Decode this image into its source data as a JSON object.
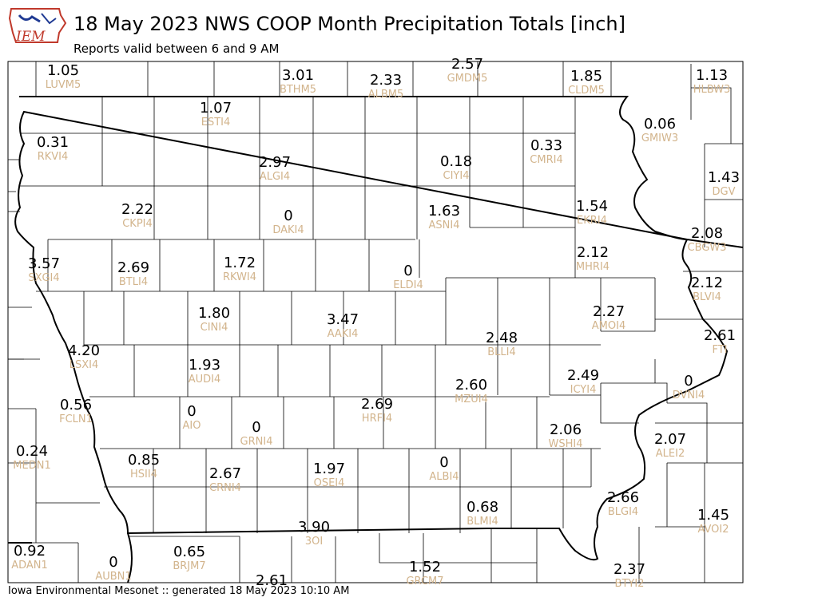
{
  "header": {
    "logo_text": "IEM",
    "title": "18 May 2023 NWS COOP Month Precipitation Totals [inch]",
    "subtitle": "Reports valid between 6 and 9 AM"
  },
  "footer": {
    "text": "Iowa Environmental Mesonet :: generated 18 May 2023 10:10 AM"
  },
  "colors": {
    "value_text": "#000000",
    "station_text": "#d2b48c",
    "boundary": "#000000",
    "logo_red": "#c0392b",
    "logo_blue": "#1f3a93"
  },
  "stations": [
    {
      "id": "LUVM5",
      "value": "1.05"
    },
    {
      "id": "BTHM5",
      "value": "3.01"
    },
    {
      "id": "ALBM5",
      "value": "2.33"
    },
    {
      "id": "GMDM5",
      "value": "2.57"
    },
    {
      "id": "CLDM5",
      "value": "1.85"
    },
    {
      "id": "HLBW3",
      "value": "1.13"
    },
    {
      "id": "ESTI4",
      "value": "1.07"
    },
    {
      "id": "GMIW3",
      "value": "0.06"
    },
    {
      "id": "RKVI4",
      "value": "0.31"
    },
    {
      "id": "CMRI4",
      "value": "0.33"
    },
    {
      "id": "ALGI4",
      "value": "2.97"
    },
    {
      "id": "CIYI4",
      "value": "0.18"
    },
    {
      "id": "DGV",
      "value": "1.43"
    },
    {
      "id": "CKPI4",
      "value": "2.22"
    },
    {
      "id": "DAKI4",
      "value": "0"
    },
    {
      "id": "ASNI4",
      "value": "1.63"
    },
    {
      "id": "EKRI4",
      "value": "1.54"
    },
    {
      "id": "CBGW3",
      "value": "2.08"
    },
    {
      "id": "SXGI4",
      "value": "3.57"
    },
    {
      "id": "BTLI4",
      "value": "2.69"
    },
    {
      "id": "RKWI4",
      "value": "1.72"
    },
    {
      "id": "ELDI4",
      "value": "0"
    },
    {
      "id": "MHRI4",
      "value": "2.12"
    },
    {
      "id": "BLVI4",
      "value": "2.12"
    },
    {
      "id": "CINI4",
      "value": "1.80"
    },
    {
      "id": "AAKI4",
      "value": "3.47"
    },
    {
      "id": "AMOI4",
      "value": "2.27"
    },
    {
      "id": "FTI",
      "value": "2.61"
    },
    {
      "id": "LSXI4",
      "value": "4.20"
    },
    {
      "id": "BLLI4",
      "value": "2.48"
    },
    {
      "id": "AUDI4",
      "value": "1.93"
    },
    {
      "id": "ICYI4",
      "value": "2.49"
    },
    {
      "id": "DVNI4",
      "value": "0"
    },
    {
      "id": "MZUI4",
      "value": "2.60"
    },
    {
      "id": "FCLN1",
      "value": "0.56"
    },
    {
      "id": "AIO",
      "value": "0"
    },
    {
      "id": "HRFI4",
      "value": "2.69"
    },
    {
      "id": "GRNI4",
      "value": "0"
    },
    {
      "id": "WSHI4",
      "value": "2.06"
    },
    {
      "id": "ALEI2",
      "value": "2.07"
    },
    {
      "id": "MEDN1",
      "value": "0.24"
    },
    {
      "id": "HSII4",
      "value": "0.85"
    },
    {
      "id": "CRNI4",
      "value": "2.67"
    },
    {
      "id": "OSEI4",
      "value": "1.97"
    },
    {
      "id": "ALBI4",
      "value": "0"
    },
    {
      "id": "BLMI4",
      "value": "0.68"
    },
    {
      "id": "BLGI4",
      "value": "2.66"
    },
    {
      "id": "AVOI2",
      "value": "1.45"
    },
    {
      "id": "3OI",
      "value": "3.90"
    },
    {
      "id": "ADAN1",
      "value": "0.92"
    },
    {
      "id": "AUBN1",
      "value": "0"
    },
    {
      "id": "BRJM7",
      "value": "0.65"
    },
    {
      "id": "GRCM7",
      "value": "1.52"
    },
    {
      "id": "BTYI2",
      "value": "2.37"
    },
    {
      "id": "",
      "value": "2.61"
    }
  ]
}
